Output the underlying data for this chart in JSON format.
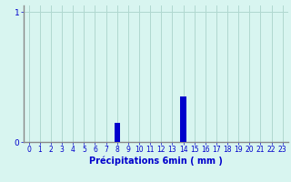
{
  "hours": [
    0,
    1,
    2,
    3,
    4,
    5,
    6,
    7,
    8,
    9,
    10,
    11,
    12,
    13,
    14,
    15,
    16,
    17,
    18,
    19,
    20,
    21,
    22,
    23
  ],
  "values": [
    0,
    0,
    0,
    0,
    0,
    0,
    0,
    0,
    0.15,
    0,
    0,
    0,
    0,
    0,
    0.35,
    0,
    0,
    0,
    0,
    0,
    0,
    0,
    0,
    0
  ],
  "bar_color": "#0000cc",
  "background_color": "#d8f5f0",
  "grid_color": "#b0d8d0",
  "axis_color": "#888888",
  "text_color": "#0000cc",
  "xlabel": "Précipitations 6min ( mm )",
  "yticks": [
    0,
    1
  ],
  "ylim": [
    0,
    1.05
  ],
  "xlim": [
    -0.5,
    23.5
  ],
  "bar_width": 0.5,
  "xlabel_fontsize": 7,
  "tick_fontsize": 5.5
}
